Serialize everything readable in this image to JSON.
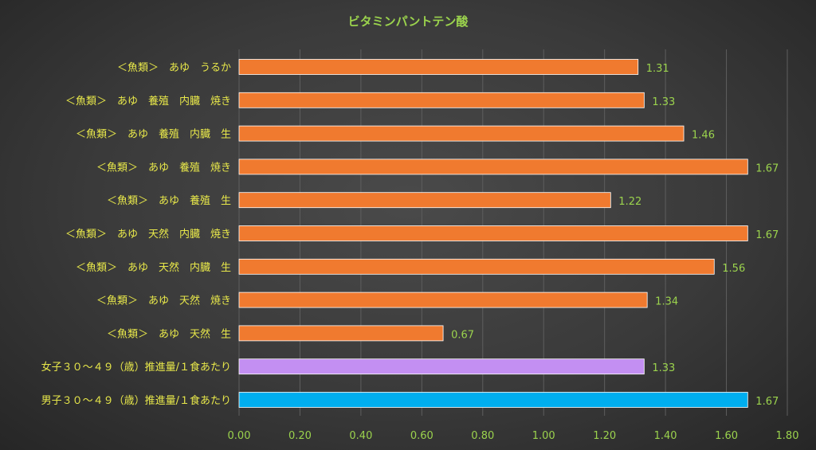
{
  "chart_data": {
    "type": "bar",
    "orientation": "horizontal",
    "title": "ビタミンパントテン酸",
    "categories": [
      "＜魚類＞　あゆ　うるか",
      "＜魚類＞　あゆ　養殖　内臓　焼き",
      "＜魚類＞　あゆ　養殖　内臓　生",
      "＜魚類＞　あゆ　養殖　焼き",
      "＜魚類＞　あゆ　養殖　生",
      "＜魚類＞　あゆ　天然　内臓　焼き",
      "＜魚類＞　あゆ　天然　内臓　生",
      "＜魚類＞　あゆ　天然　焼き",
      "＜魚類＞　あゆ　天然　生",
      "女子３０～４９（歳）推進量/１食あたり",
      "男子３０～４９（歳）推進量/１食あたり"
    ],
    "values": [
      1.31,
      1.33,
      1.46,
      1.67,
      1.22,
      1.67,
      1.56,
      1.34,
      0.67,
      1.33,
      1.67
    ],
    "value_labels": [
      "1.31",
      "1.33",
      "1.46",
      "1.67",
      "1.22",
      "1.67",
      "1.56",
      "1.34",
      "0.67",
      "1.33",
      "1.67"
    ],
    "bar_colors": [
      "#f07a2f",
      "#f07a2f",
      "#f07a2f",
      "#f07a2f",
      "#f07a2f",
      "#f07a2f",
      "#f07a2f",
      "#f07a2f",
      "#f07a2f",
      "#c38ff2",
      "#00aeef"
    ],
    "xlim": [
      0,
      1.8
    ],
    "x_ticks": [
      "0.00",
      "0.20",
      "0.40",
      "0.60",
      "0.80",
      "1.00",
      "1.20",
      "1.40",
      "1.60",
      "1.80"
    ],
    "grid": true,
    "legend": "none",
    "colors": {
      "title": "#9bd34d",
      "category_labels": "#e8e84a",
      "value_labels": "#9bd34d",
      "tick_labels": "#9bd34d",
      "gridlines": "#5e5e5e",
      "bar_outline": "#ffffff"
    }
  }
}
